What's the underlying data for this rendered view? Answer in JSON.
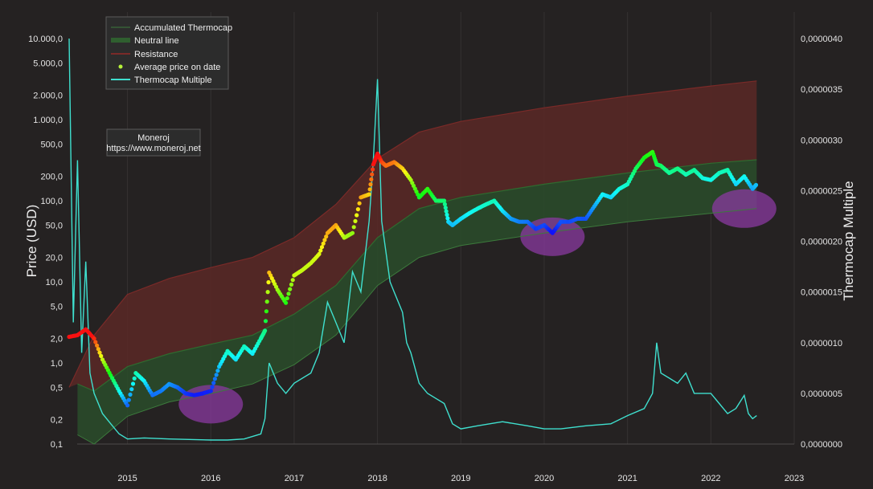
{
  "chart_data": {
    "type": "line",
    "xlabel": "",
    "ylabel": "Price (USD)",
    "y2label": "Thermocap Multiple",
    "y_scale": "log",
    "ylim": [
      0.1,
      10000
    ],
    "y2lim": [
      0,
      4e-06
    ],
    "xlim": [
      2014.3,
      2023.0
    ],
    "x_ticks": [
      "2015",
      "2016",
      "2017",
      "2018",
      "2019",
      "2020",
      "2021",
      "2022",
      "2023"
    ],
    "y_ticks": [
      {
        "value": 10000,
        "label": "10.000,0"
      },
      {
        "value": 5000,
        "label": "5.000,0"
      },
      {
        "value": 2000,
        "label": "2.000,0"
      },
      {
        "value": 1000,
        "label": "1.000,0"
      },
      {
        "value": 500,
        "label": "500,0"
      },
      {
        "value": 200,
        "label": "200,0"
      },
      {
        "value": 100,
        "label": "100,0"
      },
      {
        "value": 50,
        "label": "50,0"
      },
      {
        "value": 20,
        "label": "20,0"
      },
      {
        "value": 10,
        "label": "10,0"
      },
      {
        "value": 5,
        "label": "5,0"
      },
      {
        "value": 2,
        "label": "2,0"
      },
      {
        "value": 1,
        "label": "1,0"
      },
      {
        "value": 0.5,
        "label": "0,5"
      },
      {
        "value": 0.2,
        "label": "0,2"
      },
      {
        "value": 0.1,
        "label": "0,1"
      }
    ],
    "y2_ticks": [
      {
        "value": 4e-06,
        "label": "0,0000040"
      },
      {
        "value": 3.5e-06,
        "label": "0,0000035"
      },
      {
        "value": 3e-06,
        "label": "0,0000030"
      },
      {
        "value": 2.5e-06,
        "label": "0,0000025"
      },
      {
        "value": 2e-06,
        "label": "0,0000020"
      },
      {
        "value": 1.5e-06,
        "label": "0,0000015"
      },
      {
        "value": 1e-06,
        "label": "0,0000010"
      },
      {
        "value": 5e-07,
        "label": "0,0000005"
      },
      {
        "value": 0,
        "label": "0,0000000"
      }
    ],
    "grid": true,
    "legend": {
      "placement": "top-left",
      "entries": [
        {
          "name": "Accumulated Thermocap",
          "color": "#3c7a3c",
          "kind": "thin-line"
        },
        {
          "name": "Neutral line",
          "color": "#2f5f2f",
          "kind": "band"
        },
        {
          "name": "Resistance",
          "color": "#7a2a28",
          "kind": "band"
        },
        {
          "name": "Average price on date",
          "color": "#b6f23a",
          "kind": "dot"
        },
        {
          "name": "Thermocap Multiple",
          "color": "#3fe0cf",
          "kind": "line"
        }
      ]
    },
    "watermark": {
      "line1": "Moneroj",
      "line2": "https://www.moneroj.net"
    },
    "series": [
      {
        "name": "Accumulated Thermocap",
        "color": "#3c7a3c",
        "x": [
          2014.4,
          2014.6,
          2015.0,
          2015.5,
          2016.0,
          2016.5,
          2017.0,
          2017.5,
          2018.0,
          2018.5,
          2019.0,
          2020.0,
          2021.0,
          2022.0,
          2022.55
        ],
        "values": [
          0.13,
          0.1,
          0.22,
          0.33,
          0.42,
          0.55,
          0.95,
          2.2,
          9,
          20,
          28,
          40,
          55,
          70,
          80
        ]
      },
      {
        "name": "Neutral line",
        "color": "#2f5f2f",
        "x": [
          2014.4,
          2014.6,
          2015.0,
          2015.5,
          2016.0,
          2016.5,
          2017.0,
          2017.5,
          2018.0,
          2018.5,
          2019.0,
          2020.0,
          2021.0,
          2022.0,
          2022.55
        ],
        "values": [
          0.55,
          0.45,
          0.9,
          1.3,
          1.7,
          2.2,
          4,
          9,
          35,
          80,
          110,
          160,
          220,
          290,
          320
        ]
      },
      {
        "name": "Resistance",
        "color": "#7a2a28",
        "x": [
          2014.3,
          2014.6,
          2015.0,
          2015.5,
          2016.0,
          2016.5,
          2017.0,
          2017.5,
          2018.0,
          2018.5,
          2019.0,
          2020.0,
          2021.0,
          2022.0,
          2022.55
        ],
        "values": [
          0.5,
          2.2,
          7,
          11,
          15,
          20,
          35,
          90,
          330,
          700,
          950,
          1400,
          1950,
          2600,
          3000
        ]
      },
      {
        "name": "Average price on date",
        "color": "#b6f23a",
        "x": [
          2014.3,
          2014.4,
          2014.5,
          2014.6,
          2014.7,
          2014.8,
          2014.9,
          2015.0,
          2015.1,
          2015.2,
          2015.3,
          2015.4,
          2015.5,
          2015.6,
          2015.7,
          2015.8,
          2015.9,
          2016.0,
          2016.1,
          2016.2,
          2016.3,
          2016.4,
          2016.5,
          2016.6,
          2016.65,
          2016.7,
          2016.8,
          2016.9,
          2017.0,
          2017.1,
          2017.2,
          2017.3,
          2017.4,
          2017.5,
          2017.6,
          2017.7,
          2017.8,
          2017.9,
          2017.95,
          2018.0,
          2018.05,
          2018.1,
          2018.2,
          2018.3,
          2018.4,
          2018.5,
          2018.6,
          2018.7,
          2018.8,
          2018.85,
          2018.9,
          2019.0,
          2019.1,
          2019.2,
          2019.3,
          2019.4,
          2019.5,
          2019.6,
          2019.7,
          2019.8,
          2019.9,
          2020.0,
          2020.1,
          2020.2,
          2020.3,
          2020.4,
          2020.5,
          2020.6,
          2020.7,
          2020.8,
          2020.9,
          2021.0,
          2021.1,
          2021.2,
          2021.3,
          2021.35,
          2021.4,
          2021.5,
          2021.6,
          2021.7,
          2021.8,
          2021.9,
          2022.0,
          2022.1,
          2022.2,
          2022.3,
          2022.4,
          2022.5,
          2022.55
        ],
        "values": [
          2.1,
          2.2,
          2.6,
          2.0,
          1.1,
          0.7,
          0.45,
          0.3,
          0.75,
          0.6,
          0.4,
          0.45,
          0.55,
          0.5,
          0.42,
          0.4,
          0.42,
          0.45,
          0.9,
          1.4,
          1.1,
          1.6,
          1.3,
          2.0,
          2.5,
          13,
          8,
          5.5,
          12,
          14,
          17,
          22,
          40,
          50,
          35,
          40,
          110,
          120,
          280,
          380,
          300,
          270,
          300,
          250,
          180,
          110,
          140,
          100,
          100,
          55,
          50,
          60,
          70,
          80,
          90,
          100,
          75,
          60,
          55,
          55,
          45,
          50,
          40,
          55,
          55,
          60,
          60,
          85,
          120,
          110,
          140,
          160,
          250,
          340,
          400,
          280,
          270,
          220,
          250,
          210,
          240,
          190,
          180,
          220,
          240,
          160,
          200,
          140,
          160
        ]
      },
      {
        "name": "Thermocap Multiple",
        "color": "#3fe0cf",
        "axis": "right",
        "x": [
          2014.3,
          2014.35,
          2014.4,
          2014.45,
          2014.5,
          2014.55,
          2014.6,
          2014.7,
          2014.8,
          2014.9,
          2015.0,
          2015.2,
          2015.5,
          2016.0,
          2016.2,
          2016.4,
          2016.6,
          2016.65,
          2016.7,
          2016.8,
          2016.9,
          2017.0,
          2017.2,
          2017.3,
          2017.4,
          2017.5,
          2017.6,
          2017.7,
          2017.8,
          2017.9,
          2017.95,
          2018.0,
          2018.05,
          2018.1,
          2018.15,
          2018.2,
          2018.3,
          2018.35,
          2018.4,
          2018.5,
          2018.6,
          2018.7,
          2018.8,
          2018.9,
          2019.0,
          2019.2,
          2019.5,
          2019.8,
          2020.0,
          2020.2,
          2020.5,
          2020.8,
          2021.0,
          2021.2,
          2021.3,
          2021.35,
          2021.4,
          2021.5,
          2021.6,
          2021.7,
          2021.8,
          2022.0,
          2022.1,
          2022.2,
          2022.3,
          2022.4,
          2022.45,
          2022.5,
          2022.55
        ],
        "values": [
          4e-06,
          1.2e-06,
          2.8e-06,
          9e-07,
          1.8e-06,
          7e-07,
          5e-07,
          3e-07,
          2e-07,
          1e-07,
          5e-08,
          6e-08,
          5e-08,
          4e-08,
          4e-08,
          5e-08,
          1e-07,
          2.5e-07,
          8e-07,
          6e-07,
          5e-07,
          6e-07,
          7e-07,
          9e-07,
          1.4e-06,
          1.2e-06,
          1e-06,
          1.7e-06,
          1.5e-06,
          2.2e-06,
          2.8e-06,
          3.6e-06,
          2.2e-06,
          1.9e-06,
          1.6e-06,
          1.5e-06,
          1.3e-06,
          1e-06,
          9e-07,
          6e-07,
          5e-07,
          4.5e-07,
          4e-07,
          2e-07,
          1.5e-07,
          1.8e-07,
          2.2e-07,
          1.8e-07,
          1.5e-07,
          1.5e-07,
          1.8e-07,
          2e-07,
          2.8e-07,
          3.5e-07,
          5e-07,
          1e-06,
          7e-07,
          6.5e-07,
          6e-07,
          7e-07,
          5e-07,
          5e-07,
          4e-07,
          3e-07,
          3.5e-07,
          4.8e-07,
          3e-07,
          2.5e-07,
          2.8e-07
        ]
      }
    ],
    "highlights": [
      {
        "x": 2016.0,
        "y": 0.31,
        "color": "#8a3aa0"
      },
      {
        "x": 2020.1,
        "y": 36,
        "color": "#8a3aa0"
      },
      {
        "x": 2022.4,
        "y": 80,
        "color": "#8a3aa0"
      }
    ]
  }
}
